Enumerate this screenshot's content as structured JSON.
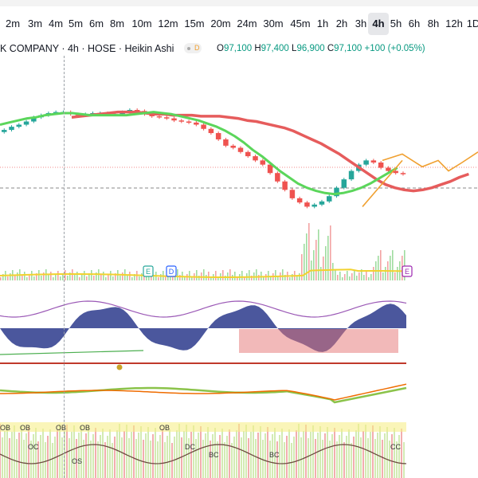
{
  "toolbar": {
    "timeframes": [
      "2m",
      "3m",
      "4m",
      "5m",
      "6m",
      "8m",
      "10m",
      "12m",
      "15m",
      "20m",
      "24m",
      "30m",
      "45m",
      "1h",
      "2h",
      "3h",
      "4h",
      "5h",
      "6h",
      "8h",
      "12h",
      "1D"
    ],
    "active": "4h"
  },
  "legend": {
    "symbol": "K COMPANY · 4h · HOSE · Heikin Ashi",
    "badge": "D",
    "o_label": "O",
    "o_value": "97,100",
    "h_label": "H",
    "h_value": "97,400",
    "l_label": "L",
    "l_value": "96,900",
    "c_label": "C",
    "c_value": "97,100",
    "change": "+100 (+0.05%)"
  },
  "markers": {
    "earnings_1": "E",
    "dividend": "D",
    "earnings_2": "E"
  },
  "osc_labels": [
    {
      "text": "OB"
    },
    {
      "text": "OB"
    },
    {
      "text": "OB"
    },
    {
      "text": "OB"
    },
    {
      "text": "OB"
    },
    {
      "text": "OC"
    },
    {
      "text": "OS"
    },
    {
      "text": "DC"
    },
    {
      "text": "BC"
    },
    {
      "text": "BC"
    },
    {
      "text": "CC"
    }
  ],
  "colors": {
    "up": "#26a69a",
    "down": "#ef5350",
    "ema_slow": "#e65c5c",
    "ema_fast": "#5bd65b",
    "forecast": "#f0a030",
    "volume_ma": "#f2d22f",
    "wave": "#2b3a8c"
  },
  "chart_data": {
    "type": "candlestick",
    "price_scale_hint": "Heikin Ashi 4h",
    "closes": [
      121,
      124,
      126,
      129,
      133,
      135,
      137,
      138,
      138,
      136,
      135,
      136,
      137,
      137,
      136,
      136,
      138,
      140,
      139,
      136,
      134,
      133,
      132,
      130,
      129,
      128,
      126,
      122,
      118,
      112,
      106,
      104,
      100,
      96,
      92,
      88,
      80,
      72,
      64,
      56,
      52,
      48,
      50,
      53,
      58,
      66,
      74,
      82,
      88,
      92,
      90,
      85,
      82,
      80,
      79
    ],
    "last_close": "97,100",
    "ema_slow": [
      133,
      134,
      135,
      136,
      137,
      138,
      138,
      138,
      137,
      136,
      136,
      135,
      135,
      135,
      134,
      134,
      134,
      133,
      132,
      130,
      129,
      127,
      125,
      123,
      120,
      116,
      112,
      108,
      103,
      98,
      92,
      86,
      80,
      74,
      69,
      66,
      64,
      63,
      64,
      66,
      69,
      72,
      76,
      79
    ],
    "ema_fast": [
      126,
      128,
      130,
      132,
      133,
      135,
      136,
      137,
      137,
      136,
      135,
      135,
      135,
      135,
      135,
      136,
      137,
      138,
      137,
      136,
      134,
      132,
      130,
      127,
      124,
      120,
      115,
      109,
      102,
      96,
      89,
      82,
      76,
      70,
      66,
      63,
      61,
      60,
      61,
      63,
      66,
      70,
      75,
      80,
      85
    ],
    "forecast": [
      92,
      98,
      86,
      92,
      82,
      90,
      100
    ]
  }
}
